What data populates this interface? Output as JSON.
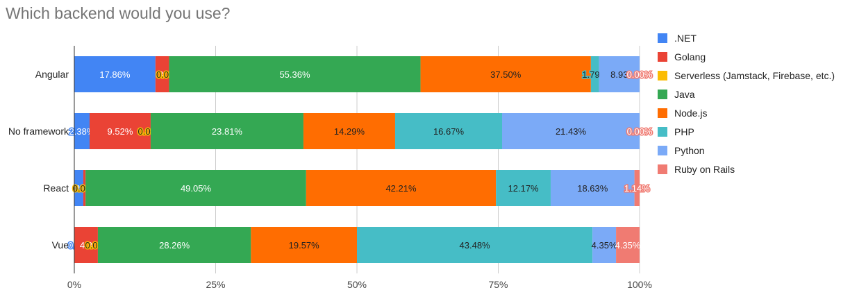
{
  "chart_data": {
    "type": "bar",
    "orientation": "horizontal",
    "stacked": "percent",
    "title": "Which backend would you use?",
    "xlabel": "",
    "ylabel": "",
    "xlim": [
      0,
      100
    ],
    "x_ticks": [
      "0%",
      "25%",
      "50%",
      "75%",
      "100%"
    ],
    "grid": true,
    "legend_position": "right",
    "categories": [
      "Angular",
      "No framework",
      "React",
      "Vue"
    ],
    "series": [
      {
        "name": ".NET",
        "color": "#4285f4",
        "values": [
          17.86,
          2.38,
          2.0,
          0.0
        ]
      },
      {
        "name": "Golang",
        "color": "#ea4335",
        "values": [
          3.0,
          9.52,
          0.5,
          4.35
        ]
      },
      {
        "name": "Serverless (Jamstack, Firebase, etc.)",
        "color": "#fbbc04",
        "values": [
          0.0,
          0.0,
          0.0,
          0.0
        ]
      },
      {
        "name": "Java",
        "color": "#34a853",
        "values": [
          55.36,
          23.81,
          49.05,
          28.26
        ]
      },
      {
        "name": "Node.js",
        "color": "#ff6d01",
        "values": [
          37.5,
          14.29,
          42.21,
          19.57
        ]
      },
      {
        "name": "PHP",
        "color": "#46bdc6",
        "values": [
          1.79,
          16.67,
          12.17,
          43.48
        ]
      },
      {
        "name": "Python",
        "color": "#7baaf7",
        "values": [
          8.93,
          21.43,
          18.63,
          4.35
        ]
      },
      {
        "name": "Ruby on Rails",
        "color": "#f07b72",
        "values": [
          0.0,
          0.0,
          1.14,
          4.35
        ]
      }
    ],
    "data_labels": [
      [
        "17.86%",
        "3.",
        "0.00%",
        "55.36%",
        "37.50%",
        "1.79%",
        "8.93",
        "0.00%"
      ],
      [
        "2.38%",
        "9.52%",
        "0.00%",
        "23.81%",
        "14.29%",
        "16.67%",
        "21.43%",
        "0.00%"
      ],
      [
        "2.",
        "",
        "0.00%",
        "49.05%",
        "42.21%",
        "12.17%",
        "18.63%",
        "1.14%"
      ],
      [
        "0.0",
        "4.3",
        "0.00%",
        "28.26%",
        "19.57%",
        "43.48%",
        "4.35%",
        "4.35%"
      ]
    ]
  }
}
